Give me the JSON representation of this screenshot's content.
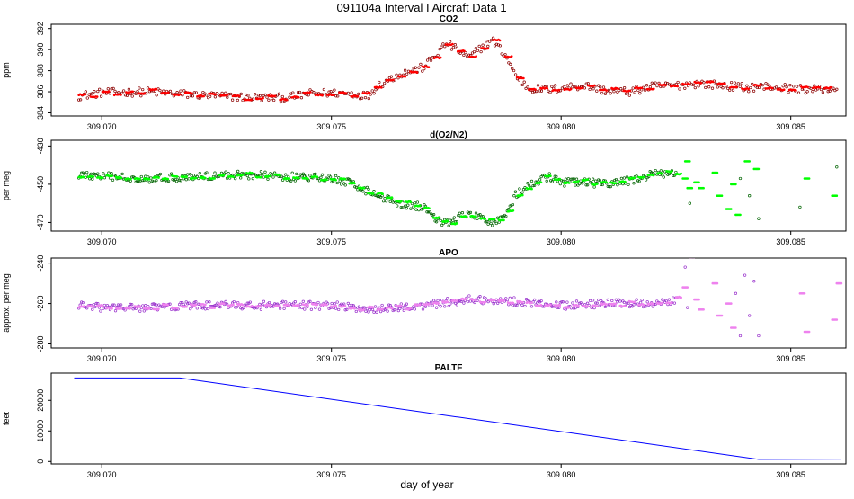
{
  "title": "091104a   Interval I Aircraft Data 1",
  "xlabel": "day of year",
  "chart_data": [
    {
      "type": "scatter",
      "title": "CO2",
      "ylabel": "ppm",
      "xlim": [
        309.0689,
        309.0862
      ],
      "ylim": [
        383.7,
        392.4
      ],
      "x_ticks": [
        309.07,
        309.075,
        309.08,
        309.085
      ],
      "x_tick_labels": [
        "309.070",
        "309.075",
        "309.080",
        "309.085"
      ],
      "y_ticks": [
        384,
        386,
        388,
        390,
        392
      ],
      "y_tick_labels": [
        "384",
        "386",
        "388",
        "390",
        "392"
      ],
      "grid": false,
      "colors": [
        "#ff0000",
        "#8b0000"
      ],
      "trend": [
        [
          309.0695,
          385.6
        ],
        [
          309.07,
          385.9
        ],
        [
          309.071,
          386.0
        ],
        [
          309.072,
          385.7
        ],
        [
          309.073,
          385.5
        ],
        [
          309.074,
          385.4
        ],
        [
          309.0745,
          385.8
        ],
        [
          309.075,
          385.9
        ],
        [
          309.0755,
          385.8
        ],
        [
          309.0758,
          385.6
        ],
        [
          309.076,
          386.6
        ],
        [
          309.0765,
          387.7
        ],
        [
          309.077,
          388.3
        ],
        [
          309.0773,
          389.6
        ],
        [
          309.0775,
          390.6
        ],
        [
          309.0778,
          389.8
        ],
        [
          309.078,
          389.2
        ],
        [
          309.0782,
          390.0
        ],
        [
          309.0785,
          390.9
        ],
        [
          309.0788,
          389.4
        ],
        [
          309.079,
          387.6
        ],
        [
          309.0793,
          386.3
        ],
        [
          309.0798,
          386.2
        ],
        [
          309.08,
          386.4
        ],
        [
          309.0805,
          386.6
        ],
        [
          309.081,
          386.1
        ],
        [
          309.0815,
          386.0
        ],
        [
          309.082,
          386.5
        ],
        [
          309.0825,
          386.6
        ],
        [
          309.083,
          386.8
        ],
        [
          309.0835,
          386.6
        ],
        [
          309.084,
          386.4
        ],
        [
          309.0845,
          386.5
        ],
        [
          309.085,
          386.3
        ],
        [
          309.0855,
          386.2
        ],
        [
          309.086,
          386.3
        ]
      ]
    },
    {
      "type": "scatter",
      "title": "d(O2/N2)",
      "ylabel": "per meg",
      "xlim": [
        309.0689,
        309.0862
      ],
      "ylim": [
        -474.5,
        -427.0
      ],
      "x_ticks": [
        309.07,
        309.075,
        309.08,
        309.085
      ],
      "x_tick_labels": [
        "309.070",
        "309.075",
        "309.080",
        "309.085"
      ],
      "y_ticks": [
        -470,
        -450,
        -430
      ],
      "y_tick_labels": [
        "-470",
        "-450",
        "-430"
      ],
      "grid": false,
      "colors": [
        "#00ff00",
        "#006400"
      ],
      "trend": [
        [
          309.0695,
          -445
        ],
        [
          309.07,
          -446
        ],
        [
          309.071,
          -447
        ],
        [
          309.072,
          -446
        ],
        [
          309.073,
          -445
        ],
        [
          309.074,
          -446
        ],
        [
          309.075,
          -447
        ],
        [
          309.0755,
          -450
        ],
        [
          309.076,
          -456
        ],
        [
          309.0765,
          -460
        ],
        [
          309.077,
          -462
        ],
        [
          309.0773,
          -468
        ],
        [
          309.0775,
          -471
        ],
        [
          309.0778,
          -467
        ],
        [
          309.078,
          -466
        ],
        [
          309.0783,
          -468
        ],
        [
          309.0785,
          -470
        ],
        [
          309.0788,
          -466
        ],
        [
          309.079,
          -456
        ],
        [
          309.0793,
          -451
        ],
        [
          309.0797,
          -446
        ],
        [
          309.08,
          -449
        ],
        [
          309.0805,
          -449
        ],
        [
          309.081,
          -450
        ],
        [
          309.0815,
          -448
        ],
        [
          309.082,
          -445
        ],
        [
          309.0825,
          -444
        ]
      ],
      "sparse": [
        [
          309.08265,
          -447
        ],
        [
          309.0827,
          -438
        ],
        [
          309.08275,
          -452
        ],
        [
          309.0828,
          -460
        ],
        [
          309.0829,
          -449
        ],
        [
          309.083,
          -452
        ],
        [
          309.0833,
          -444
        ],
        [
          309.0834,
          -456
        ],
        [
          309.0836,
          -463
        ],
        [
          309.0837,
          -450
        ],
        [
          309.0838,
          -466
        ],
        [
          309.0839,
          -447
        ],
        [
          309.084,
          -438
        ],
        [
          309.0841,
          -456
        ],
        [
          309.0842,
          -442
        ],
        [
          309.0843,
          -468
        ],
        [
          309.0852,
          -462
        ],
        [
          309.0853,
          -447
        ],
        [
          309.0859,
          -456
        ],
        [
          309.086,
          -441
        ]
      ]
    },
    {
      "type": "scatter",
      "title": "APO",
      "ylabel": "approx. per meg",
      "xlim": [
        309.0689,
        309.0862
      ],
      "ylim": [
        -282.0,
        -237.5
      ],
      "x_ticks": [
        309.07,
        309.075,
        309.08,
        309.085
      ],
      "x_tick_labels": [
        "309.070",
        "309.075",
        "309.080",
        "309.085"
      ],
      "y_ticks": [
        -280,
        -260,
        -240
      ],
      "y_tick_labels": [
        "-280",
        "-260",
        "-240"
      ],
      "grid": false,
      "colors": [
        "#ee82ee",
        "#9932cc"
      ],
      "trend": [
        [
          309.0695,
          -261
        ],
        [
          309.07,
          -262
        ],
        [
          309.071,
          -262
        ],
        [
          309.072,
          -261
        ],
        [
          309.073,
          -261
        ],
        [
          309.074,
          -261
        ],
        [
          309.075,
          -261
        ],
        [
          309.076,
          -263
        ],
        [
          309.077,
          -261
        ],
        [
          309.078,
          -258
        ],
        [
          309.079,
          -259
        ],
        [
          309.08,
          -261
        ],
        [
          309.081,
          -260
        ],
        [
          309.082,
          -260
        ],
        [
          309.0825,
          -258
        ]
      ],
      "sparse": [
        [
          309.08265,
          -252
        ],
        [
          309.0827,
          -242
        ],
        [
          309.08275,
          -262
        ],
        [
          309.0828,
          -237
        ],
        [
          309.0829,
          -258
        ],
        [
          309.083,
          -263
        ],
        [
          309.0833,
          -250
        ],
        [
          309.0834,
          -266
        ],
        [
          309.0836,
          -260
        ],
        [
          309.0837,
          -272
        ],
        [
          309.0838,
          -255
        ],
        [
          309.0839,
          -276
        ],
        [
          309.084,
          -246
        ],
        [
          309.0841,
          -266
        ],
        [
          309.0842,
          -249
        ],
        [
          309.0843,
          -276
        ],
        [
          309.0852,
          -255
        ],
        [
          309.0853,
          -274
        ],
        [
          309.0859,
          -268
        ],
        [
          309.086,
          -250
        ]
      ]
    },
    {
      "type": "line",
      "title": "PALTF",
      "ylabel": "feet",
      "xlim": [
        309.0689,
        309.0862
      ],
      "ylim": [
        -800,
        28900
      ],
      "x_ticks": [
        309.07,
        309.075,
        309.08,
        309.085
      ],
      "x_tick_labels": [
        "309.070",
        "309.075",
        "309.080",
        "309.085"
      ],
      "y_ticks": [
        0,
        10000,
        20000
      ],
      "y_tick_labels": [
        "0",
        "10000",
        "20000"
      ],
      "grid": false,
      "colors": [
        "#0000ff"
      ],
      "x": [
        309.0694,
        309.0717,
        309.0843,
        309.0861
      ],
      "values": [
        27300,
        27300,
        700,
        800
      ]
    }
  ]
}
